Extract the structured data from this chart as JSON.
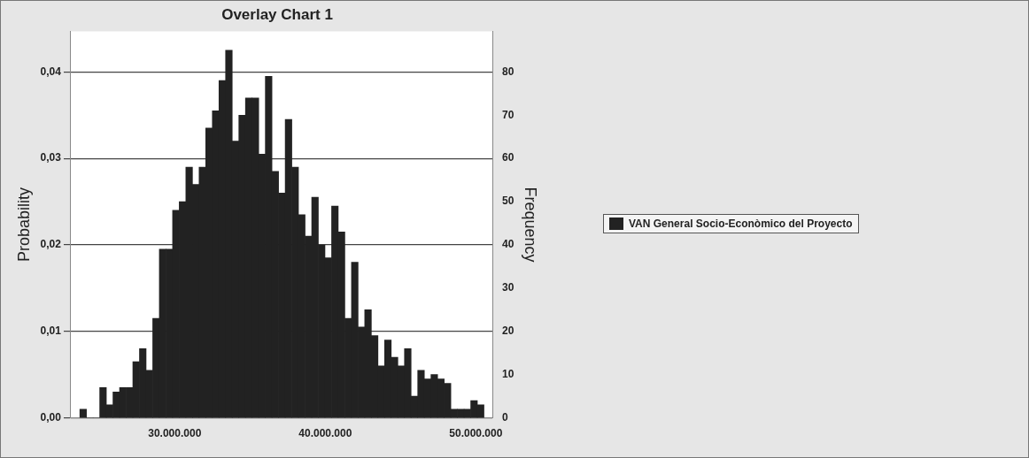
{
  "chart_data": {
    "type": "histogram",
    "title": "Overlay Chart 1",
    "ylabel": "Probability",
    "y2label": "Frequency",
    "bins": [
      23700000,
      24140000,
      24580000,
      25020000,
      25460000,
      25900000,
      26340000,
      26780000,
      27220000,
      27660000,
      28100000,
      28540000,
      28980000,
      29420000,
      29860000,
      30300000,
      30740000,
      31180000,
      31620000,
      32060000,
      32500000,
      32940000,
      33380000,
      33820000,
      34260000,
      34700000,
      35140000,
      35580000,
      36020000,
      36460000,
      36900000,
      37340000,
      37780000,
      38220000,
      38660000,
      39100000,
      39540000,
      39980000,
      40420000,
      40860000,
      41300000,
      41740000,
      42180000,
      42620000,
      43060000,
      43500000,
      43940000,
      44380000,
      44820000,
      45260000,
      45700000,
      46140000,
      46580000,
      47020000,
      47460000,
      47900000,
      48340000,
      48780000,
      49220000,
      49660000,
      50100000,
      50540000
    ],
    "series": [
      {
        "name": "VAN General Socio-Econòmico del Proyecto",
        "color": "#222222",
        "axis": "y2",
        "values": [
          2,
          0,
          0,
          7,
          3,
          6,
          7,
          7,
          13,
          16,
          11,
          23,
          39,
          39,
          48,
          50,
          58,
          54,
          58,
          67,
          71,
          78,
          85,
          64,
          70,
          74,
          74,
          61,
          79,
          57,
          52,
          69,
          58,
          47,
          42,
          51,
          40,
          37,
          49,
          43,
          23,
          36,
          21,
          25,
          19,
          12,
          18,
          14,
          12,
          16,
          5,
          11,
          9,
          10,
          9,
          8,
          2,
          2,
          2,
          4,
          3
        ]
      }
    ],
    "xlim": [
      23100000,
      51100000
    ],
    "xticks": [
      {
        "value": 30000000,
        "label": "30.000.000"
      },
      {
        "value": 40000000,
        "label": "40.000.000"
      },
      {
        "value": 50000000,
        "label": "50.000.000"
      }
    ],
    "ylim": [
      0,
      0.0447
    ],
    "yticks": [
      {
        "value": 0,
        "label": "0,00"
      },
      {
        "value": 0.01,
        "label": "0,01"
      },
      {
        "value": 0.02,
        "label": "0,02"
      },
      {
        "value": 0.03,
        "label": "0,03"
      },
      {
        "value": 0.04,
        "label": "0,04"
      }
    ],
    "y2lim": [
      0,
      89.4
    ],
    "y2ticks": [
      0,
      10,
      20,
      30,
      40,
      50,
      60,
      70,
      80
    ],
    "grid": "y",
    "legend": "right"
  }
}
